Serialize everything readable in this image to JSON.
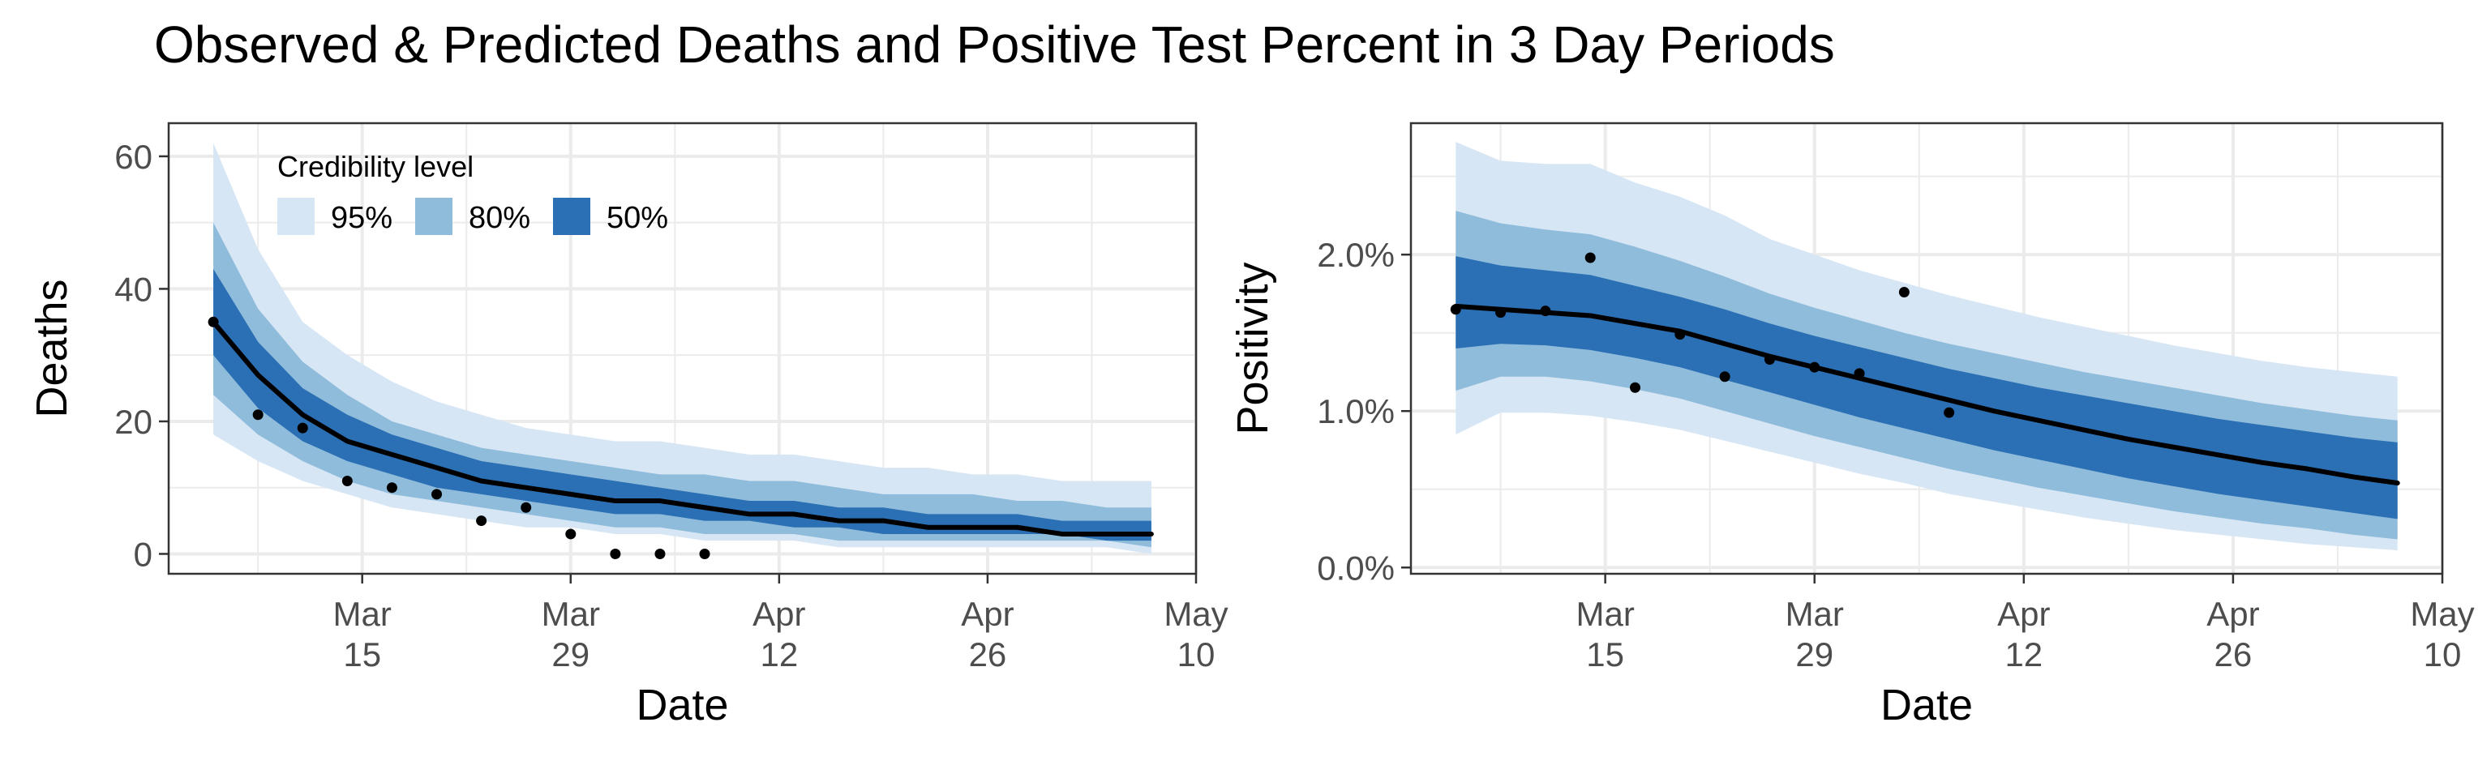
{
  "title": "Observed & Predicted Deaths and Positive Test Percent in 3 Day Periods",
  "chart_data": [
    {
      "type": "line",
      "xlabel": "Date",
      "ylabel": "Deaths",
      "x_ticks": [
        {
          "date": "2020-03-15",
          "month": "Mar",
          "day": "15"
        },
        {
          "date": "2020-03-29",
          "month": "Mar",
          "day": "29"
        },
        {
          "date": "2020-04-12",
          "month": "Apr",
          "day": "12"
        },
        {
          "date": "2020-04-26",
          "month": "Apr",
          "day": "26"
        },
        {
          "date": "2020-05-10",
          "month": "May",
          "day": "10"
        }
      ],
      "xlim": [
        "2020-03-02",
        "2020-05-10"
      ],
      "y_ticks": [
        0,
        20,
        40,
        60
      ],
      "y_tick_labels": [
        "0",
        "20",
        "40",
        "60"
      ],
      "ylim": [
        -3,
        65
      ],
      "grid": true,
      "x": [
        "2020-03-05",
        "2020-03-08",
        "2020-03-11",
        "2020-03-14",
        "2020-03-17",
        "2020-03-20",
        "2020-03-23",
        "2020-03-26",
        "2020-03-29",
        "2020-04-01",
        "2020-04-04",
        "2020-04-07",
        "2020-04-10",
        "2020-04-13",
        "2020-04-16",
        "2020-04-19",
        "2020-04-22",
        "2020-04-25",
        "2020-04-28",
        "2020-05-01",
        "2020-05-04",
        "2020-05-07"
      ],
      "median": [
        35,
        27,
        21,
        17,
        15,
        13,
        11,
        10,
        9,
        8,
        8,
        7,
        6,
        6,
        5,
        5,
        4,
        4,
        4,
        3,
        3,
        3
      ],
      "bands": [
        {
          "level": "95%",
          "color": "#d7e6f5",
          "lower": [
            18,
            14,
            11,
            9,
            7,
            6,
            5,
            4,
            4,
            3,
            3,
            2,
            2,
            2,
            1,
            1,
            1,
            1,
            1,
            1,
            1,
            0
          ],
          "upper": [
            62,
            46,
            35,
            30,
            26,
            23,
            21,
            19,
            18,
            17,
            17,
            16,
            15,
            15,
            14,
            13,
            13,
            12,
            12,
            11,
            11,
            11
          ]
        },
        {
          "level": "80%",
          "color": "#8fbcdb",
          "lower": [
            24,
            18,
            14,
            11,
            9,
            8,
            7,
            6,
            5,
            4,
            4,
            3,
            3,
            3,
            2,
            2,
            2,
            2,
            2,
            2,
            2,
            1
          ],
          "upper": [
            50,
            37,
            29,
            24,
            20,
            18,
            16,
            15,
            14,
            13,
            12,
            12,
            11,
            11,
            10,
            9,
            9,
            9,
            8,
            8,
            7,
            7
          ]
        },
        {
          "level": "50%",
          "color": "#2b6fb4",
          "lower": [
            30,
            22,
            17,
            14,
            12,
            10,
            9,
            8,
            7,
            6,
            6,
            5,
            5,
            4,
            4,
            3,
            3,
            3,
            3,
            3,
            2,
            2
          ],
          "upper": [
            43,
            32,
            25,
            21,
            18,
            16,
            14,
            13,
            12,
            11,
            10,
            9,
            8,
            8,
            7,
            7,
            6,
            6,
            6,
            5,
            5,
            5
          ]
        }
      ],
      "observed": {
        "x": [
          "2020-03-05",
          "2020-03-08",
          "2020-03-11",
          "2020-03-14",
          "2020-03-17",
          "2020-03-20",
          "2020-03-23",
          "2020-03-26",
          "2020-03-29",
          "2020-04-01",
          "2020-04-04",
          "2020-04-07"
        ],
        "y": [
          35,
          21,
          19,
          11,
          10,
          9,
          5,
          7,
          3,
          0,
          0,
          0
        ]
      },
      "legend": {
        "title": "Credibility level",
        "position": "top-left",
        "items": [
          {
            "label": "95%",
            "color": "#d7e6f5"
          },
          {
            "label": "80%",
            "color": "#8fbcdb"
          },
          {
            "label": "50%",
            "color": "#2b6fb4"
          }
        ]
      }
    },
    {
      "type": "line",
      "xlabel": "Date",
      "ylabel": "Positivity",
      "x_ticks": [
        {
          "date": "2020-03-15",
          "month": "Mar",
          "day": "15"
        },
        {
          "date": "2020-03-29",
          "month": "Mar",
          "day": "29"
        },
        {
          "date": "2020-04-12",
          "month": "Apr",
          "day": "12"
        },
        {
          "date": "2020-04-26",
          "month": "Apr",
          "day": "26"
        },
        {
          "date": "2020-05-10",
          "month": "May",
          "day": "10"
        }
      ],
      "xlim": [
        "2020-03-02",
        "2020-05-10"
      ],
      "y_ticks": [
        0,
        1,
        2
      ],
      "y_tick_labels": [
        "0.0%",
        "1.0%",
        "2.0%"
      ],
      "ylim": [
        -0.04,
        2.84
      ],
      "grid": true,
      "x": [
        "2020-03-05",
        "2020-03-08",
        "2020-03-11",
        "2020-03-14",
        "2020-03-17",
        "2020-03-20",
        "2020-03-23",
        "2020-03-26",
        "2020-03-29",
        "2020-04-01",
        "2020-04-04",
        "2020-04-07",
        "2020-04-10",
        "2020-04-13",
        "2020-04-16",
        "2020-04-19",
        "2020-04-22",
        "2020-04-25",
        "2020-04-28",
        "2020-05-01",
        "2020-05-04",
        "2020-05-07"
      ],
      "median": [
        1.67,
        1.65,
        1.63,
        1.61,
        1.56,
        1.51,
        1.43,
        1.35,
        1.28,
        1.21,
        1.14,
        1.07,
        1.0,
        0.94,
        0.88,
        0.82,
        0.77,
        0.72,
        0.67,
        0.63,
        0.58,
        0.54
      ],
      "bands": [
        {
          "level": "95%",
          "color": "#d7e6f5",
          "lower": [
            0.85,
            0.99,
            0.99,
            0.97,
            0.93,
            0.88,
            0.81,
            0.74,
            0.67,
            0.6,
            0.54,
            0.47,
            0.42,
            0.37,
            0.32,
            0.28,
            0.24,
            0.21,
            0.18,
            0.15,
            0.13,
            0.11
          ],
          "upper": [
            2.72,
            2.6,
            2.58,
            2.58,
            2.46,
            2.37,
            2.25,
            2.1,
            2.0,
            1.9,
            1.82,
            1.74,
            1.67,
            1.6,
            1.54,
            1.48,
            1.42,
            1.37,
            1.32,
            1.28,
            1.25,
            1.22
          ]
        },
        {
          "level": "80%",
          "color": "#8fbcdb",
          "lower": [
            1.13,
            1.22,
            1.22,
            1.19,
            1.14,
            1.08,
            1.0,
            0.92,
            0.84,
            0.77,
            0.7,
            0.63,
            0.57,
            0.51,
            0.46,
            0.41,
            0.36,
            0.32,
            0.28,
            0.25,
            0.21,
            0.18
          ],
          "upper": [
            2.28,
            2.2,
            2.16,
            2.13,
            2.05,
            1.96,
            1.86,
            1.75,
            1.66,
            1.58,
            1.5,
            1.43,
            1.37,
            1.31,
            1.25,
            1.2,
            1.15,
            1.1,
            1.05,
            1.01,
            0.97,
            0.94
          ]
        },
        {
          "level": "50%",
          "color": "#2b6fb4",
          "lower": [
            1.4,
            1.43,
            1.42,
            1.39,
            1.34,
            1.28,
            1.2,
            1.12,
            1.04,
            0.96,
            0.89,
            0.82,
            0.75,
            0.69,
            0.63,
            0.57,
            0.52,
            0.47,
            0.43,
            0.39,
            0.35,
            0.31
          ],
          "upper": [
            1.99,
            1.93,
            1.9,
            1.87,
            1.8,
            1.73,
            1.65,
            1.56,
            1.48,
            1.41,
            1.34,
            1.27,
            1.21,
            1.15,
            1.1,
            1.05,
            1.0,
            0.95,
            0.91,
            0.87,
            0.83,
            0.8
          ]
        }
      ],
      "observed": {
        "x": [
          "2020-03-05",
          "2020-03-08",
          "2020-03-11",
          "2020-03-14",
          "2020-03-17",
          "2020-03-20",
          "2020-03-23",
          "2020-03-26",
          "2020-03-29",
          "2020-04-01",
          "2020-04-04",
          "2020-04-07"
        ],
        "y": [
          1.65,
          1.63,
          1.64,
          1.98,
          1.15,
          1.49,
          1.22,
          1.33,
          1.28,
          1.24,
          1.76,
          0.99
        ]
      }
    }
  ]
}
